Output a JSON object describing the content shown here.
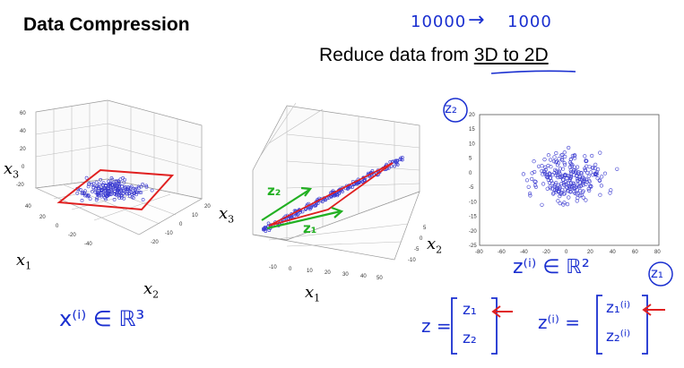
{
  "slide": {
    "title": "Data Compression",
    "subtitle_prefix": "Reduce data from ",
    "subtitle_emphasis": "3D to 2D"
  },
  "handwriting": {
    "top_note_left": "10000",
    "top_note_right": "1000",
    "arrow": "→",
    "left_label": "x⁽ⁱ⁾ ∈ ℝ³",
    "right_label": "z⁽ⁱ⁾ ∈ ℝ²",
    "z_vector_lhs": "z =",
    "z_vector_top": "z₁",
    "z_vector_bottom": "z₂",
    "zi_vector_lhs": "z⁽ⁱ⁾ =",
    "zi_vector_top": "z₁⁽ⁱ⁾",
    "zi_vector_bottom": "z₂⁽ⁱ⁾",
    "green_z1": "z₁",
    "green_z2": "z₂",
    "circled_z1": "z₁",
    "circled_z2": "z₂"
  },
  "axes_labels": {
    "plot1": {
      "x1": "x",
      "x1_sub": "1",
      "x2": "x",
      "x2_sub": "2",
      "x3": "x",
      "x3_sub": "3"
    },
    "plot2": {
      "x1": "x",
      "x1_sub": "1",
      "x2": "x",
      "x2_sub": "2",
      "x3": "x",
      "x3_sub": "3"
    }
  },
  "chart_data": {
    "type": "scatter",
    "title": "",
    "xlim": [
      -80,
      80
    ],
    "ylim": [
      -25,
      20
    ],
    "xticks": [
      -80,
      -60,
      -40,
      -20,
      0,
      20,
      40,
      60,
      80
    ],
    "yticks": [
      -25,
      -20,
      -15,
      -10,
      -5,
      0,
      5,
      10,
      15,
      20
    ],
    "marker": "circle-open",
    "color": "#3a3ad0",
    "n_points": 260
  },
  "colors": {
    "ink_blue": "#1a2fd0",
    "ink_red": "#e02020",
    "ink_green": "#22b022",
    "points": "#3a3ad0"
  }
}
